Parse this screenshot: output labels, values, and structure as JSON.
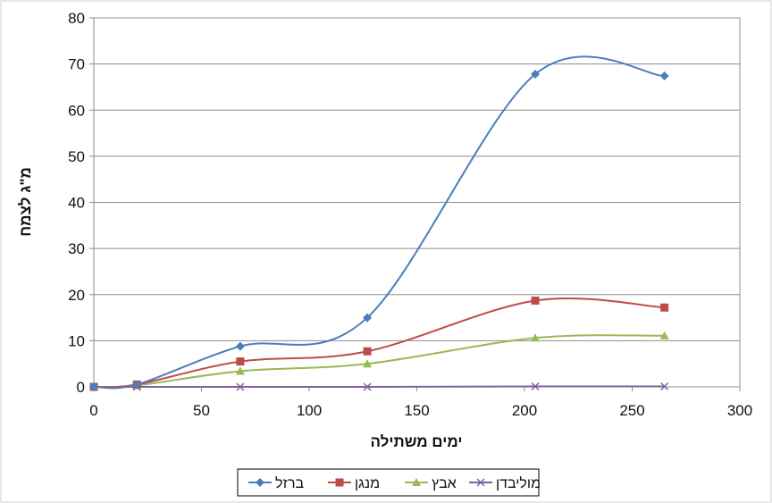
{
  "chart_data": {
    "type": "line",
    "xlabel": "ימים משתילה",
    "ylabel": "מ\"ג לצמח",
    "xlim": [
      0,
      300
    ],
    "ylim": [
      0,
      80
    ],
    "xticks": [
      0,
      50,
      100,
      150,
      200,
      250,
      300
    ],
    "yticks": [
      0,
      10,
      20,
      30,
      40,
      50,
      60,
      70,
      80
    ],
    "grid": "horizontal",
    "legend_position": "bottom",
    "x": [
      0,
      20,
      68,
      127,
      205,
      265
    ],
    "series": [
      {
        "name": "ברזל",
        "color": "#4a7ebb",
        "marker": "diamond",
        "values": [
          0,
          0.5,
          8.8,
          15.0,
          67.8,
          67.4
        ]
      },
      {
        "name": "מנגן",
        "color": "#be4b48",
        "marker": "square",
        "values": [
          0,
          0.5,
          5.5,
          7.7,
          18.7,
          17.2
        ]
      },
      {
        "name": "אבץ",
        "color": "#98b954",
        "marker": "triangle",
        "values": [
          0,
          0.3,
          3.4,
          5.0,
          10.6,
          11.1
        ]
      },
      {
        "name": "מוליבדן",
        "color": "#7d60a0",
        "marker": "x",
        "values": [
          0,
          0,
          0,
          0,
          0.1,
          0.1
        ]
      }
    ]
  }
}
